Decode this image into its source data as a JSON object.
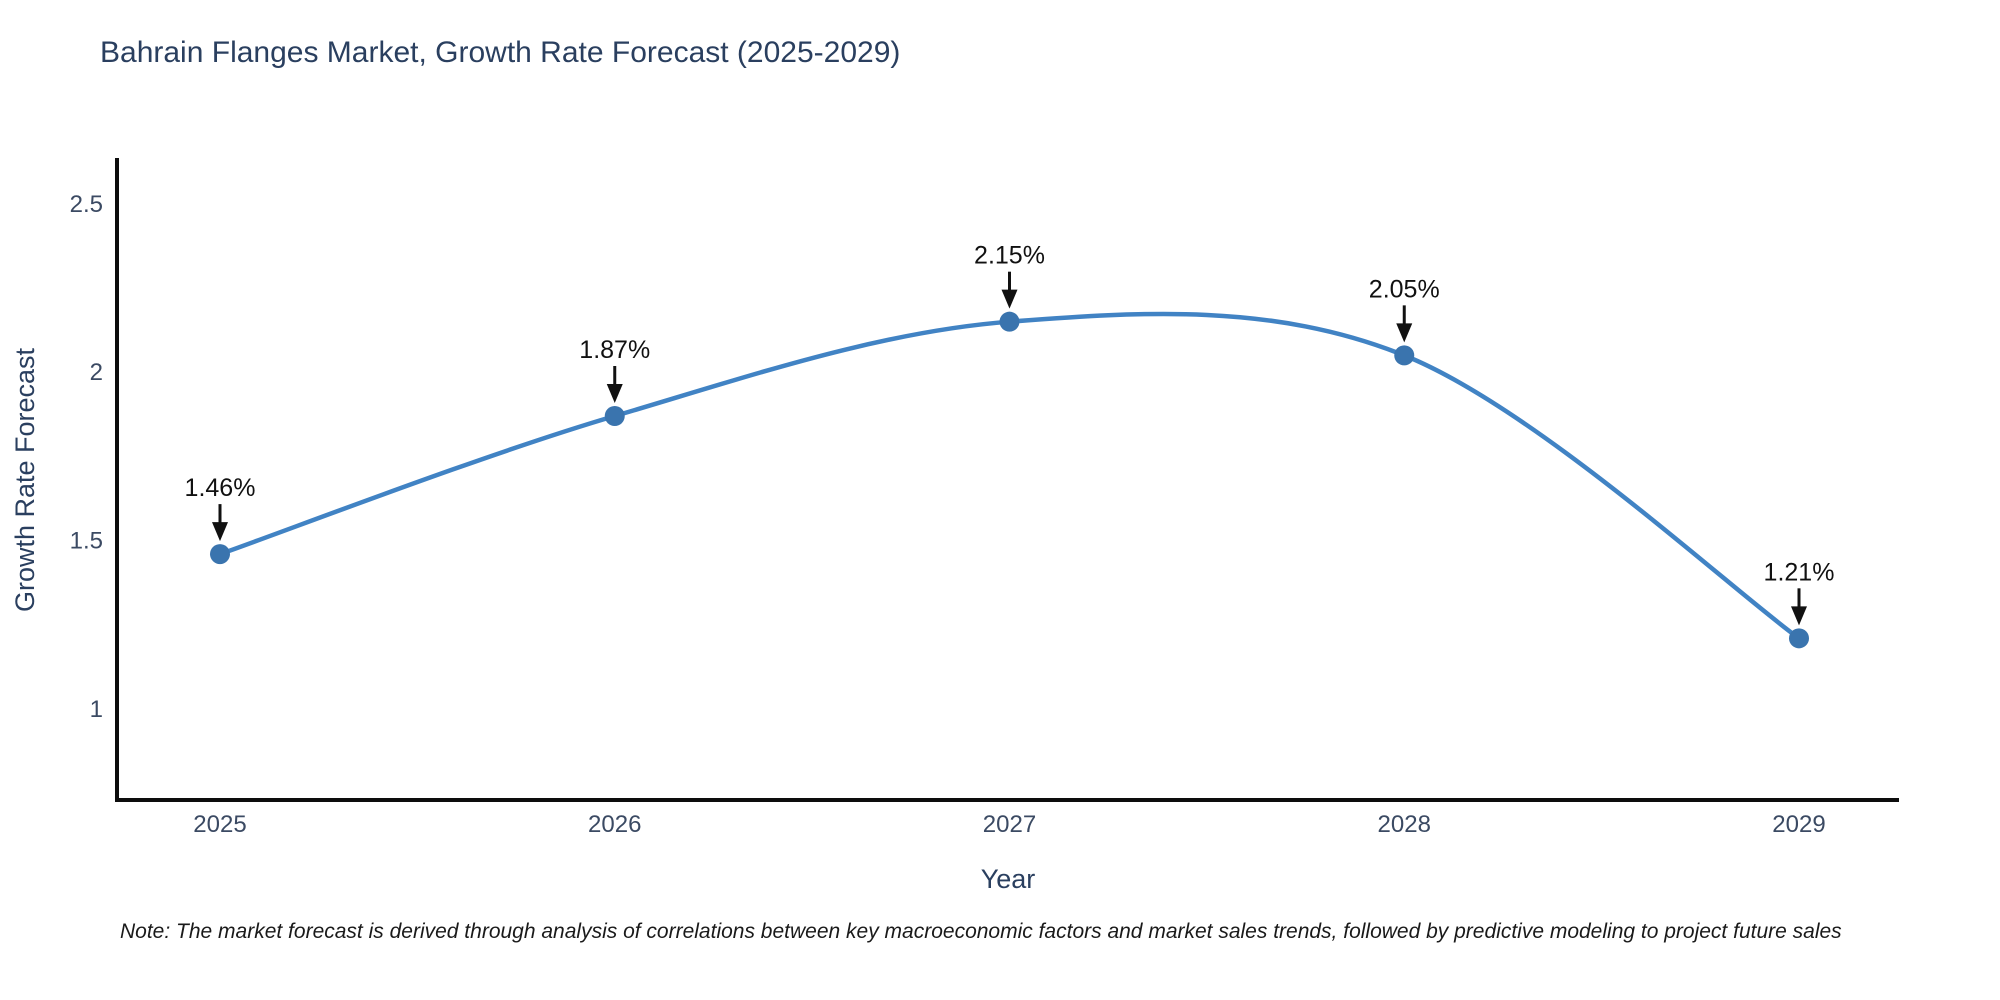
{
  "title": "Bahrain Flanges Market, Growth Rate Forecast (2025-2029)",
  "note": "Note: The market forecast is derived through analysis of correlations between key macroeconomic factors and market sales trends, followed by predictive modeling to project future sales",
  "chart_data": {
    "type": "line",
    "title": "Bahrain Flanges Market, Growth Rate Forecast (2025-2029)",
    "x": [
      2025,
      2026,
      2027,
      2028,
      2029
    ],
    "values": [
      1.46,
      1.87,
      2.15,
      2.05,
      1.21
    ],
    "point_labels": [
      "1.46%",
      "1.87%",
      "2.15%",
      "2.05%",
      "1.21%"
    ],
    "xlabel": "Year",
    "ylabel": "Growth Rate Forecast",
    "yticks": [
      1,
      1.5,
      2,
      2.5
    ],
    "ylim": [
      0.73,
      2.63
    ],
    "grid": false,
    "legend_position": "none",
    "smooth": true,
    "line_color": "#4183c4",
    "marker_color": "#3a74ae",
    "annotation_color": "#111111",
    "axis_color": "#0d0d0d"
  }
}
